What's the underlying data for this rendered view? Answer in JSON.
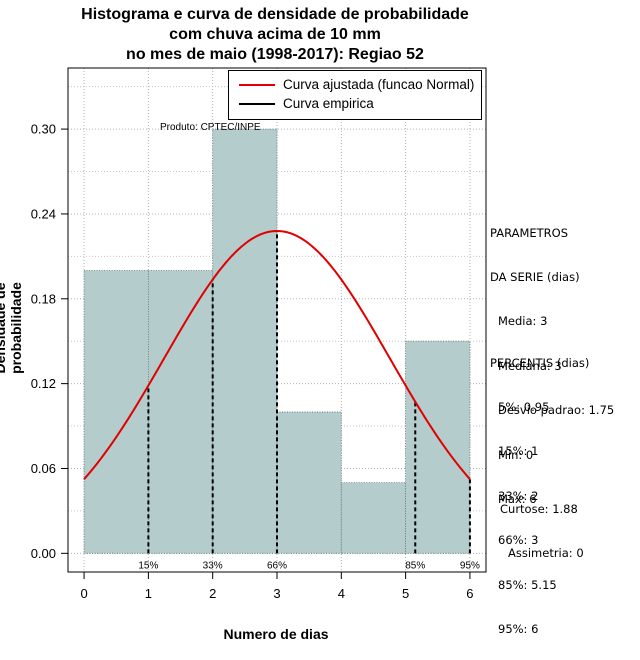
{
  "chart_data": {
    "type": "bar",
    "title_lines": [
      "Histograma e curva de densidade de probabilidade",
      "com chuva acima de 10 mm",
      "no mes de maio (1998-2017): Regiao 52"
    ],
    "xlabel": "Numero de dias",
    "ylabel": "Densidade de probabilidade",
    "xlim": [
      -0.25,
      6.25
    ],
    "ylim": [
      -0.0132,
      0.3432
    ],
    "x_ticks": [
      "0",
      "1",
      "2",
      "3",
      "4",
      "5",
      "6"
    ],
    "y_ticks": [
      "0.00",
      "0.06",
      "0.12",
      "0.18",
      "0.24",
      "0.30"
    ],
    "bins": [
      {
        "start": 0,
        "end": 1,
        "density": 0.2
      },
      {
        "start": 1,
        "end": 2,
        "density": 0.2
      },
      {
        "start": 2,
        "end": 3,
        "density": 0.3
      },
      {
        "start": 3,
        "end": 4,
        "density": 0.1
      },
      {
        "start": 4,
        "end": 5,
        "density": 0.05
      },
      {
        "start": 5,
        "end": 6,
        "density": 0.15
      }
    ],
    "normal_curve": {
      "mean": 3,
      "sd": 1.75,
      "x_range": [
        0,
        6
      ],
      "color": "#e00000"
    },
    "percentile_marks": [
      {
        "label": "15%",
        "x": 1
      },
      {
        "label": "33%",
        "x": 2
      },
      {
        "label": "66%",
        "x": 3
      },
      {
        "label": "85%",
        "x": 5.15
      },
      {
        "label": "95%",
        "x": 6
      }
    ],
    "bar_color": "#b4cccc",
    "grid": true,
    "legend": {
      "placement": "top-right",
      "entries": [
        {
          "label": "Curva ajustada (funcao Normal)",
          "color": "#e00000"
        },
        {
          "label": "Curva empirica",
          "color": "#000000"
        }
      ]
    },
    "annotation": "Produto: CPTEC/INPE"
  },
  "stats": {
    "params_header": [
      "PARAMETROS",
      "DA SERIE (dias)"
    ],
    "params": [
      "Media: 3",
      "Mediana: 3",
      "Desvio padrao: 1.75",
      "Min: 0",
      "Max: 6"
    ],
    "percentis_header": "PERCENTIS (dias)",
    "percentis": [
      "5%: 0.95",
      "15%: 1",
      "33%: 2",
      "66%: 3",
      "85%: 5.15",
      "95%: 6"
    ],
    "curtose": "Curtose: 1.88",
    "assimetria": "Assimetria: 0"
  }
}
